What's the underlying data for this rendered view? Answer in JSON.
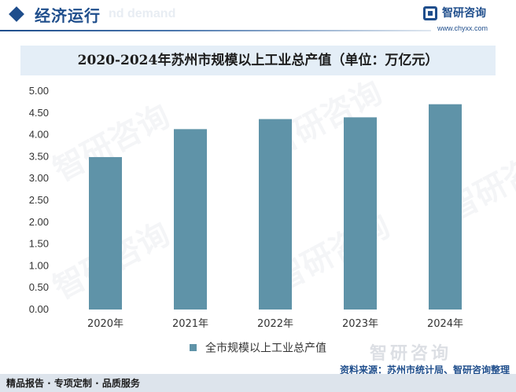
{
  "header": {
    "section_title": "经济运行",
    "ghost_text": "nd demand",
    "brand_name": "智研咨询",
    "brand_url": "www.chyxx.com"
  },
  "watermark_text": "智研咨询",
  "chart_data": {
    "type": "bar",
    "title": "2020-2024年苏州市规模以上工业总产值（单位：万亿元）",
    "categories": [
      "2020年",
      "2021年",
      "2022年",
      "2023年",
      "2024年"
    ],
    "series": [
      {
        "name": "全市规模以上工业总产值",
        "values": [
          3.49,
          4.13,
          4.36,
          4.4,
          4.7
        ]
      }
    ],
    "ylim": [
      0,
      5
    ],
    "yticks": [
      "0.00",
      "0.50",
      "1.00",
      "1.50",
      "2.00",
      "2.50",
      "3.00",
      "3.50",
      "4.00",
      "4.50",
      "5.00"
    ],
    "grid": false,
    "legend_position": "bottom",
    "bar_color": "#5f93a8"
  },
  "footer": {
    "brand_watermark": "智研咨询",
    "source": "资料来源：苏州市统计局、智研咨询整理",
    "slogan": "精品报告 · 专项定制 · 品质服务"
  }
}
